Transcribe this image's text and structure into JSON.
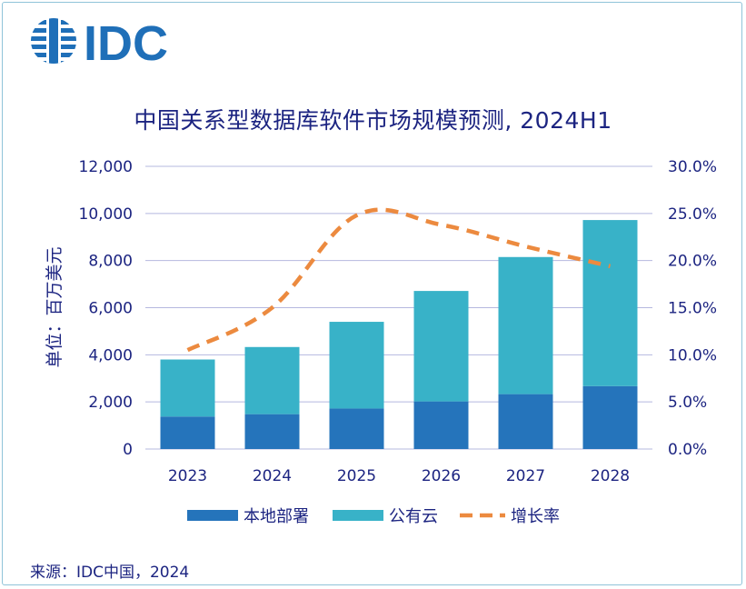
{
  "brand": {
    "logo_text": "IDC",
    "logo_color": "#1f6fb8"
  },
  "chart_data": {
    "type": "bar",
    "title": "中国关系型数据库软件市场规模预测, 2024H1",
    "ylabel": "单位：百万美元",
    "categories": [
      "2023",
      "2024",
      "2025",
      "2026",
      "2027",
      "2028"
    ],
    "stacked": true,
    "series": [
      {
        "name": "本地部署",
        "values": [
          1380,
          1480,
          1720,
          2020,
          2330,
          2670
        ],
        "color": "#2574bb",
        "axis": "left"
      },
      {
        "name": "公有云",
        "values": [
          2420,
          2850,
          3680,
          4690,
          5820,
          7050
        ],
        "color": "#38b2c8",
        "axis": "left"
      },
      {
        "name": "增长率",
        "type": "line",
        "style": "dashed",
        "values": [
          10.5,
          15.0,
          24.8,
          23.8,
          21.5,
          19.4
        ],
        "unit": "%",
        "color": "#ec8a3f",
        "axis": "right"
      }
    ],
    "ylim": [
      0,
      12000
    ],
    "y_ticks": [
      "0",
      "2,000",
      "4,000",
      "6,000",
      "8,000",
      "10,000",
      "12,000"
    ],
    "y2lim": [
      0,
      30
    ],
    "y2_ticks": [
      "0.0%",
      "5.0%",
      "10.0%",
      "15.0%",
      "20.0%",
      "25.0%",
      "30.0%"
    ],
    "grid": true,
    "legend_position": "bottom"
  },
  "footer": {
    "source": "来源：IDC中国，2024"
  }
}
